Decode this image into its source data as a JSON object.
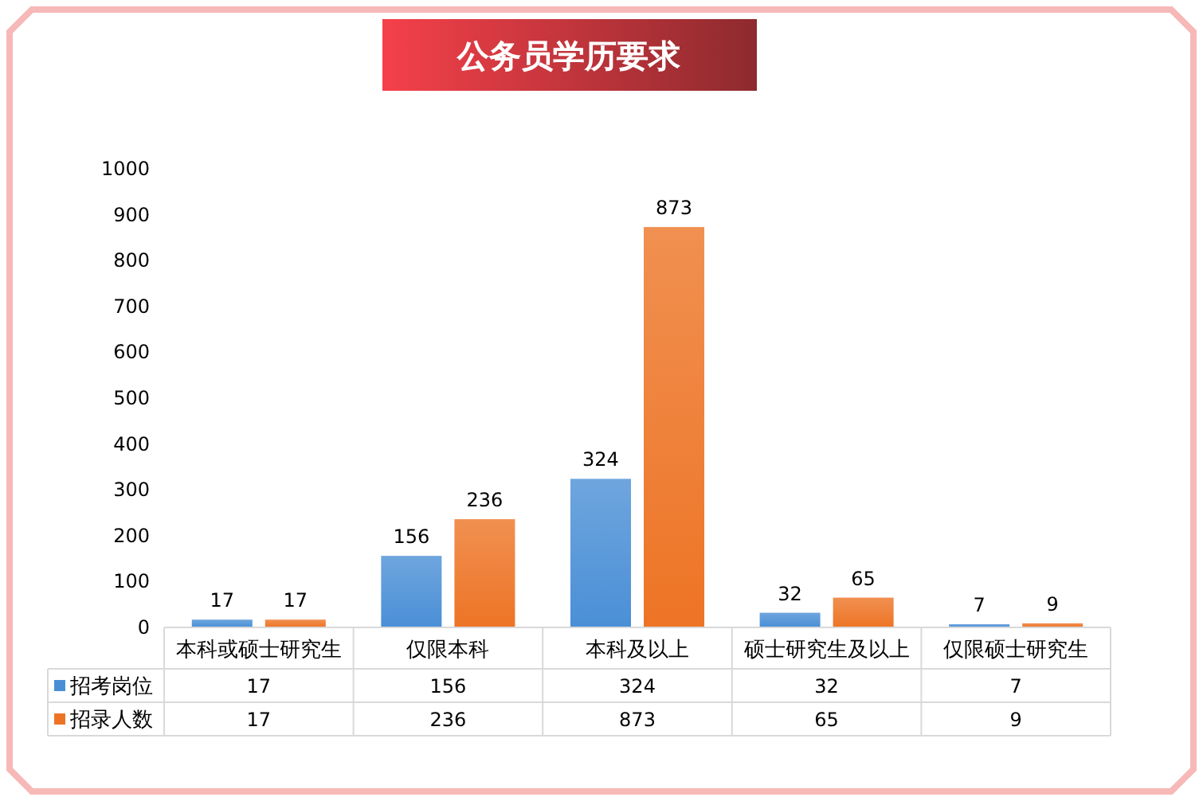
{
  "chart_data": {
    "type": "bar",
    "title": "公务员学历要求",
    "categories": [
      "本科或硕士研究生",
      "仅限本科",
      "本科及以上",
      "硕士研究生及以上",
      "仅限硕士研究生"
    ],
    "series": [
      {
        "name": "招考岗位",
        "color": "#4a8fd6",
        "values": [
          17,
          156,
          324,
          32,
          7
        ]
      },
      {
        "name": "招录人数",
        "color": "#ed7425",
        "values": [
          17,
          236,
          873,
          65,
          9
        ]
      }
    ],
    "ylim": [
      0,
      1000
    ],
    "yticks": [
      0,
      100,
      200,
      300,
      400,
      500,
      600,
      700,
      800,
      900,
      1000
    ],
    "data_labels": true,
    "legend": "bottom",
    "grid": false,
    "annotations": [
      "17",
      "156",
      "324",
      "32",
      "7",
      "17",
      "236",
      "873",
      "65",
      "9"
    ]
  }
}
